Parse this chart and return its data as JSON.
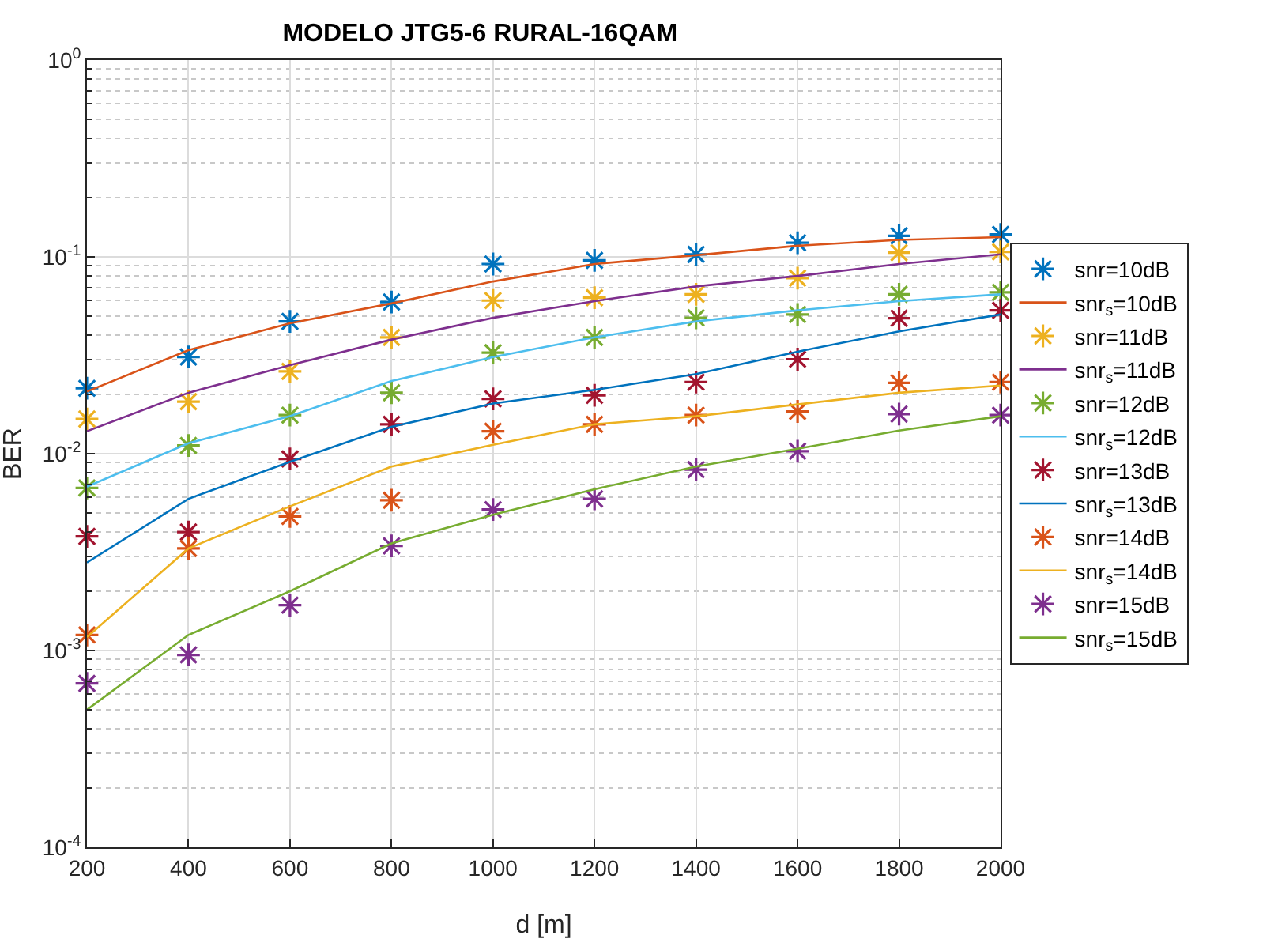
{
  "chart_data": {
    "type": "line",
    "title": "MODELO JTG5-6 RURAL-16QAM",
    "xlabel": "d [m]",
    "ylabel": "BER",
    "x": [
      200,
      400,
      600,
      800,
      1000,
      1200,
      1400,
      1600,
      1800,
      2000
    ],
    "xlim": [
      200,
      2000
    ],
    "xticks": [
      200,
      400,
      600,
      800,
      1000,
      1200,
      1400,
      1600,
      1800,
      2000
    ],
    "log": "y",
    "ylim": [
      0.0001,
      1
    ],
    "yticks": [
      {
        "value": 0.0001,
        "label": "10$^{-4}$"
      },
      {
        "value": 0.001,
        "label": "10$^{-3}$"
      },
      {
        "value": 0.01,
        "label": "10$^{-2}$"
      },
      {
        "value": 0.1,
        "label": "10$^{-1}$"
      },
      {
        "value": 1,
        "label": "10$^{0}$"
      }
    ],
    "grid": true,
    "legend": "right",
    "series": [
      {
        "name": "snr=10dB",
        "type": "scatter",
        "marker": "cross",
        "color": "#0072bd",
        "values": [
          0.0215,
          0.031,
          0.047,
          0.059,
          0.092,
          0.096,
          0.103,
          0.118,
          0.128,
          0.13
        ]
      },
      {
        "name": "snr$_{s}$=10dB",
        "marker": "none",
        "color": "#d95319",
        "values": [
          0.0207,
          0.0336,
          0.046,
          0.058,
          0.075,
          0.092,
          0.102,
          0.114,
          0.122,
          0.126
        ]
      },
      {
        "name": "snr=11dB",
        "type": "scatter",
        "marker": "cross",
        "color": "#edb120",
        "values": [
          0.015,
          0.0184,
          0.0262,
          0.039,
          0.06,
          0.062,
          0.0645,
          0.078,
          0.105,
          0.106
        ]
      },
      {
        "name": "snr$_{s}$=11dB",
        "marker": "none",
        "color": "#7e2f8e",
        "values": [
          0.013,
          0.0204,
          0.0282,
          0.038,
          0.049,
          0.0596,
          0.0708,
          0.08,
          0.092,
          0.103
        ]
      },
      {
        "name": "snr=12dB",
        "type": "scatter",
        "marker": "cross",
        "color": "#77ac30",
        "values": [
          0.0067,
          0.011,
          0.0157,
          0.0204,
          0.0326,
          0.039,
          0.049,
          0.051,
          0.0645,
          0.066
        ]
      },
      {
        "name": "snr$_{s}$=12dB",
        "marker": "none",
        "color": "#4dbeee",
        "values": [
          0.0068,
          0.0113,
          0.0155,
          0.0234,
          0.031,
          0.039,
          0.047,
          0.0535,
          0.0596,
          0.0645
        ]
      },
      {
        "name": "snr=13dB",
        "type": "scatter",
        "marker": "cross",
        "color": "#a2142f",
        "values": [
          0.0038,
          0.004,
          0.0094,
          0.0141,
          0.019,
          0.0198,
          0.0231,
          0.0302,
          0.0488,
          0.0535
        ]
      },
      {
        "name": "snr$_{s}$=13dB",
        "marker": "none",
        "color": "#0072bd",
        "values": [
          0.0028,
          0.0059,
          0.0091,
          0.0137,
          0.018,
          0.0211,
          0.0254,
          0.033,
          0.0418,
          0.051
        ]
      },
      {
        "name": "snr=14dB",
        "type": "scatter",
        "marker": "cross",
        "color": "#d95319",
        "values": [
          0.0012,
          0.0033,
          0.0048,
          0.0058,
          0.013,
          0.0141,
          0.0157,
          0.0164,
          0.0229,
          0.0231
        ]
      },
      {
        "name": "snr$_{s}$=14dB",
        "marker": "none",
        "color": "#edb120",
        "values": [
          0.00117,
          0.0033,
          0.0054,
          0.0086,
          0.0111,
          0.0141,
          0.0155,
          0.0178,
          0.0204,
          0.0222
        ]
      },
      {
        "name": "snr=15dB",
        "type": "scatter",
        "marker": "cross",
        "color": "#7e2f8e",
        "values": [
          0.00068,
          0.00095,
          0.0017,
          0.0034,
          0.0052,
          0.0059,
          0.0083,
          0.0103,
          0.0159,
          0.0157
        ]
      },
      {
        "name": "snr$_{s}$=15dB",
        "marker": "none",
        "color": "#77ac30",
        "values": [
          0.0005,
          0.0012,
          0.002,
          0.0035,
          0.0049,
          0.0066,
          0.0086,
          0.0106,
          0.0131,
          0.0155
        ]
      }
    ]
  }
}
